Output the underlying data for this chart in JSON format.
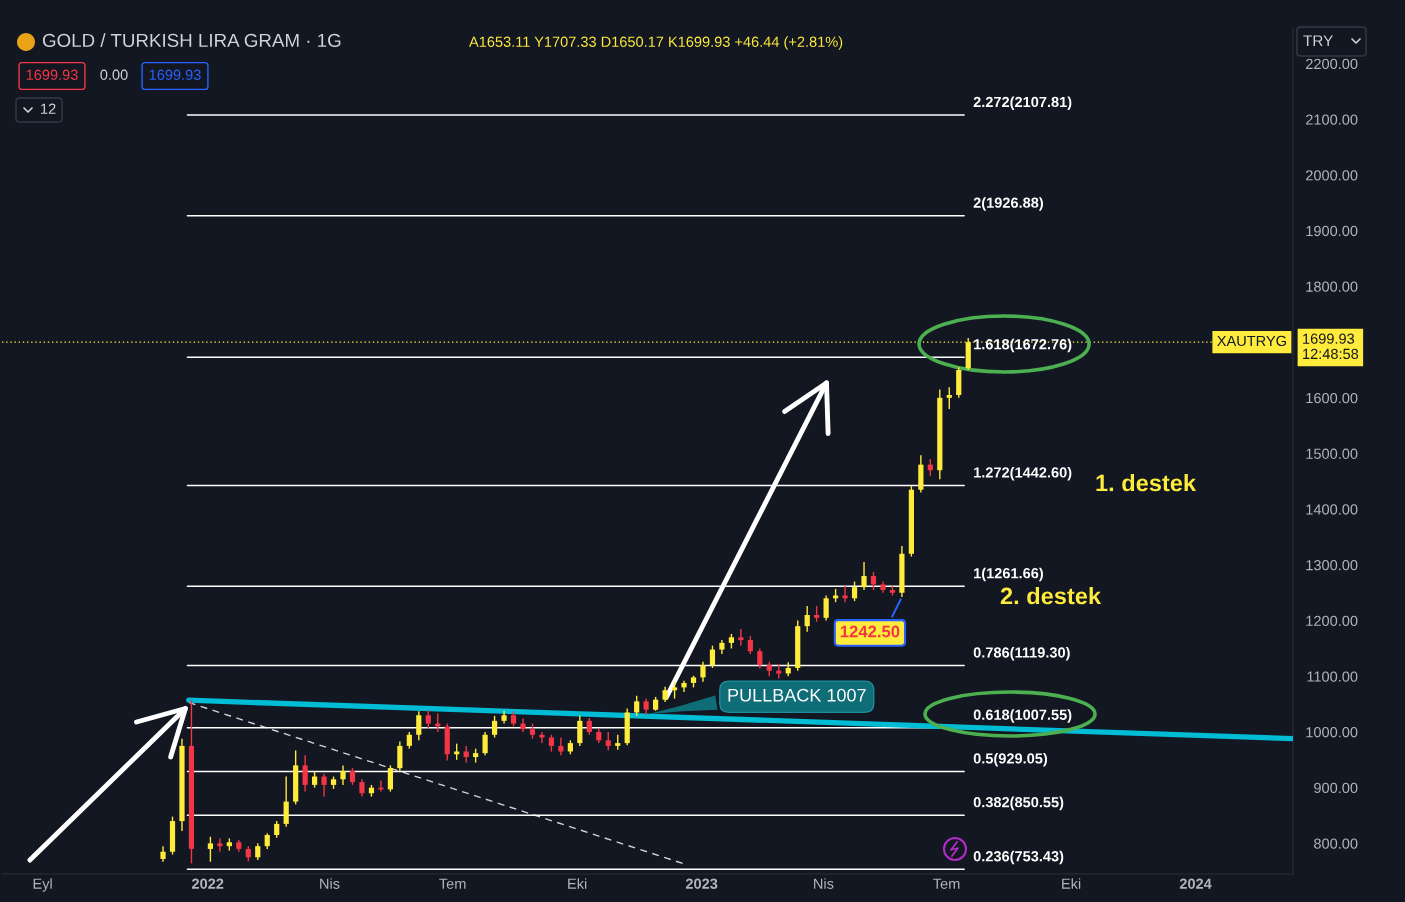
{
  "chart_data": {
    "type": "candlestick",
    "title": "GOLD / TURKISH LIRA GRAM · 1G",
    "subtitle": "A1653.11 Y1707.33 D1650.17 K1699.93 +46.44 (+2.81%)",
    "ylabel": "TRY",
    "xlim": [
      "2021-08-02",
      "2024-03-13"
    ],
    "ylim": [
      745,
      2264
    ],
    "xticks": [
      {
        "value": "2021-09-01",
        "label": "Eyl"
      },
      {
        "value": "2022-01-01",
        "label": "2022"
      },
      {
        "value": "2022-04-01",
        "label": "Nis"
      },
      {
        "value": "2022-07-01",
        "label": "Tem"
      },
      {
        "value": "2022-10-01",
        "label": "Eki"
      },
      {
        "value": "2023-01-01",
        "label": "2023"
      },
      {
        "value": "2023-04-01",
        "label": "Nis"
      },
      {
        "value": "2023-07-01",
        "label": "Tem"
      },
      {
        "value": "2023-10-01",
        "label": "Eki"
      },
      {
        "value": "2024-01-01",
        "label": "2024"
      }
    ],
    "yticks": [
      {
        "value": 800,
        "label": "800.00"
      },
      {
        "value": 900,
        "label": "900.00"
      },
      {
        "value": 1000,
        "label": "1000.00"
      },
      {
        "value": 1100,
        "label": "1100.00"
      },
      {
        "value": 1200,
        "label": "1200.00"
      },
      {
        "value": 1300,
        "label": "1300.00"
      },
      {
        "value": 1400,
        "label": "1400.00"
      },
      {
        "value": 1500,
        "label": "1500.00"
      },
      {
        "value": 1600,
        "label": "1600.00"
      },
      {
        "value": 1800,
        "label": "1800.00"
      },
      {
        "value": 1900,
        "label": "1900.00"
      },
      {
        "value": 2000,
        "label": "2000.00"
      },
      {
        "value": 2100,
        "label": "2100.00"
      },
      {
        "value": 2200,
        "label": "2200.00"
      }
    ],
    "series": [
      {
        "x": [
          "2021-11-29",
          "2021-12-06",
          "2021-12-13",
          "2021-12-20",
          "2022-01-03",
          "2022-01-10",
          "2022-01-17",
          "2022-01-24",
          "2022-01-31",
          "2022-02-07",
          "2022-02-14",
          "2022-02-21",
          "2022-02-28",
          "2022-03-07",
          "2022-03-14",
          "2022-03-21",
          "2022-03-28",
          "2022-04-04",
          "2022-04-11",
          "2022-04-18",
          "2022-04-25",
          "2022-05-02",
          "2022-05-09",
          "2022-05-16",
          "2022-05-23",
          "2022-05-30",
          "2022-06-06",
          "2022-06-13",
          "2022-06-20",
          "2022-06-27",
          "2022-07-04",
          "2022-07-11",
          "2022-07-18",
          "2022-07-25",
          "2022-08-01",
          "2022-08-08",
          "2022-08-15",
          "2022-08-22",
          "2022-08-29",
          "2022-09-05",
          "2022-09-12",
          "2022-09-19",
          "2022-09-26",
          "2022-10-03",
          "2022-10-10",
          "2022-10-17",
          "2022-10-24",
          "2022-10-31",
          "2022-11-07",
          "2022-11-14",
          "2022-11-21",
          "2022-11-28",
          "2022-12-05",
          "2022-12-12",
          "2022-12-19",
          "2022-12-26",
          "2023-01-02",
          "2023-01-09",
          "2023-01-16",
          "2023-01-23",
          "2023-01-30",
          "2023-02-06",
          "2023-02-13",
          "2023-02-20",
          "2023-02-27",
          "2023-03-06",
          "2023-03-13",
          "2023-03-20",
          "2023-03-27",
          "2023-04-03",
          "2023-04-10",
          "2023-04-17",
          "2023-04-24",
          "2023-05-01",
          "2023-05-08",
          "2023-05-15",
          "2023-05-22",
          "2023-05-29",
          "2023-06-05",
          "2023-06-12",
          "2023-06-19",
          "2023-06-26",
          "2023-07-03",
          "2023-07-10",
          "2023-07-17"
        ],
        "ohlc": [
          [
            772,
            795,
            767,
            785
          ],
          [
            785,
            848,
            780,
            840
          ],
          [
            840,
            988,
            822,
            975
          ],
          [
            975,
            1058,
            764,
            790
          ],
          [
            790,
            812,
            767,
            800
          ],
          [
            800,
            809,
            785,
            795
          ],
          [
            795,
            809,
            787,
            802
          ],
          [
            802,
            806,
            785,
            790
          ],
          [
            790,
            795,
            768,
            775
          ],
          [
            775,
            800,
            770,
            795
          ],
          [
            795,
            818,
            790,
            815
          ],
          [
            815,
            840,
            810,
            835
          ],
          [
            835,
            920,
            830,
            875
          ],
          [
            875,
            967,
            870,
            940
          ],
          [
            940,
            958,
            893,
            905
          ],
          [
            905,
            929,
            900,
            920
          ],
          [
            920,
            925,
            884,
            905
          ],
          [
            905,
            920,
            898,
            915
          ],
          [
            915,
            940,
            905,
            930
          ],
          [
            930,
            935,
            905,
            910
          ],
          [
            910,
            915,
            884,
            890
          ],
          [
            890,
            905,
            884,
            900
          ],
          [
            900,
            913,
            893,
            897
          ],
          [
            897,
            940,
            893,
            935
          ],
          [
            935,
            983,
            930,
            975
          ],
          [
            975,
            1000,
            970,
            995
          ],
          [
            995,
            1037,
            985,
            1030
          ],
          [
            1030,
            1040,
            1006,
            1015
          ],
          [
            1015,
            1033,
            1000,
            1010
          ],
          [
            1010,
            1015,
            949,
            960
          ],
          [
            960,
            979,
            950,
            965
          ],
          [
            965,
            975,
            945,
            955
          ],
          [
            955,
            970,
            945,
            962
          ],
          [
            962,
            1000,
            958,
            995
          ],
          [
            995,
            1029,
            990,
            1020
          ],
          [
            1020,
            1038,
            1015,
            1030
          ],
          [
            1030,
            1037,
            1010,
            1015
          ],
          [
            1015,
            1024,
            1000,
            1005
          ],
          [
            1005,
            1015,
            988,
            995
          ],
          [
            995,
            1000,
            980,
            990
          ],
          [
            990,
            995,
            965,
            975
          ],
          [
            975,
            990,
            958,
            965
          ],
          [
            965,
            985,
            960,
            980
          ],
          [
            980,
            1029,
            975,
            1020
          ],
          [
            1020,
            1025,
            995,
            1000
          ],
          [
            1000,
            1006,
            980,
            985
          ],
          [
            985,
            1000,
            967,
            975
          ],
          [
            975,
            995,
            968,
            980
          ],
          [
            980,
            1042,
            976,
            1035
          ],
          [
            1035,
            1065,
            1029,
            1055
          ],
          [
            1055,
            1060,
            1031,
            1040
          ],
          [
            1040,
            1063,
            1038,
            1058
          ],
          [
            1058,
            1081,
            1054,
            1075
          ],
          [
            1075,
            1090,
            1060,
            1080
          ],
          [
            1080,
            1092,
            1072,
            1088
          ],
          [
            1088,
            1101,
            1080,
            1098
          ],
          [
            1098,
            1126,
            1090,
            1120
          ],
          [
            1120,
            1155,
            1115,
            1148
          ],
          [
            1148,
            1165,
            1140,
            1160
          ],
          [
            1160,
            1176,
            1150,
            1170
          ],
          [
            1170,
            1185,
            1155,
            1165
          ],
          [
            1165,
            1172,
            1140,
            1145
          ],
          [
            1145,
            1150,
            1114,
            1120
          ],
          [
            1120,
            1126,
            1100,
            1110
          ],
          [
            1110,
            1122,
            1096,
            1105
          ],
          [
            1105,
            1125,
            1100,
            1115
          ],
          [
            1115,
            1200,
            1110,
            1190
          ],
          [
            1190,
            1226,
            1180,
            1210
          ],
          [
            1210,
            1226,
            1198,
            1205
          ],
          [
            1205,
            1245,
            1200,
            1240
          ],
          [
            1240,
            1257,
            1233,
            1245
          ],
          [
            1245,
            1262,
            1233,
            1240
          ],
          [
            1240,
            1270,
            1235,
            1260
          ],
          [
            1260,
            1305,
            1255,
            1280
          ],
          [
            1280,
            1287,
            1255,
            1265
          ],
          [
            1265,
            1270,
            1250,
            1255
          ],
          [
            1255,
            1262,
            1245,
            1250
          ],
          [
            1250,
            1334,
            1242.5,
            1320
          ],
          [
            1320,
            1442,
            1315,
            1435
          ],
          [
            1435,
            1497,
            1430,
            1480
          ],
          [
            1480,
            1490,
            1460,
            1470
          ],
          [
            1470,
            1615,
            1454,
            1600
          ],
          [
            1600,
            1619,
            1580,
            1605
          ],
          [
            1605,
            1655,
            1600,
            1650
          ],
          [
            1653.11,
            1707.33,
            1650.17,
            1699.93
          ]
        ],
        "colors": [
          "#ffeb3b",
          "#ffeb3b",
          "#ffeb3b",
          "#f23645",
          "#ffeb3b",
          "#f23645",
          "#ffeb3b",
          "#f23645",
          "#f23645",
          "#ffeb3b",
          "#ffeb3b",
          "#ffeb3b",
          "#ffeb3b",
          "#ffeb3b",
          "#f23645",
          "#ffeb3b",
          "#f23645",
          "#ffeb3b",
          "#ffeb3b",
          "#f23645",
          "#f23645",
          "#ffeb3b",
          "#f23645",
          "#ffeb3b",
          "#ffeb3b",
          "#ffeb3b",
          "#ffeb3b",
          "#f23645",
          "#f23645",
          "#f23645",
          "#ffeb3b",
          "#f23645",
          "#ffeb3b",
          "#ffeb3b",
          "#ffeb3b",
          "#ffeb3b",
          "#f23645",
          "#f23645",
          "#f23645",
          "#f23645",
          "#f23645",
          "#f23645",
          "#ffeb3b",
          "#ffeb3b",
          "#f23645",
          "#f23645",
          "#f23645",
          "#ffeb3b",
          "#ffeb3b",
          "#ffeb3b",
          "#f23645",
          "#ffeb3b",
          "#ffeb3b",
          "#ffeb3b",
          "#ffeb3b",
          "#ffeb3b",
          "#ffeb3b",
          "#ffeb3b",
          "#ffeb3b",
          "#ffeb3b",
          "#f23645",
          "#f23645",
          "#f23645",
          "#f23645",
          "#f23645",
          "#ffeb3b",
          "#ffeb3b",
          "#ffeb3b",
          "#f23645",
          "#ffeb3b",
          "#ffeb3b",
          "#f23645",
          "#ffeb3b",
          "#ffeb3b",
          "#f23645",
          "#f23645",
          "#f23645",
          "#ffeb3b",
          "#ffeb3b",
          "#ffeb3b",
          "#f23645",
          "#ffeb3b",
          "#ffeb3b",
          "#ffeb3b",
          "#ffeb3b"
        ]
      },
      {
        "type": "line",
        "color": "#00bcd4",
        "x": [
          "2021-12-18",
          "2024-03-13"
        ],
        "values": [
          1057,
          988
        ]
      },
      {
        "type": "line",
        "color": "#d1d4dc",
        "line_style": "dashed",
        "x": [
          "2021-12-18",
          "2022-12-18"
        ],
        "values": [
          1053,
          764
        ]
      },
      {
        "type": "line",
        "name": "2.272(2107.81)",
        "color": "#ffffff",
        "x": [
          "2021-12-17",
          "2023-07-14"
        ],
        "values": [
          2107.81,
          2107.81
        ]
      },
      {
        "type": "line",
        "name": "2(1926.88)",
        "color": "#ffffff",
        "x": [
          "2021-12-17",
          "2023-07-14"
        ],
        "values": [
          1926.88,
          1926.88
        ]
      },
      {
        "type": "line",
        "name": "1.618(1672.76)",
        "color": "#ffffff",
        "x": [
          "2021-12-17",
          "2023-07-14"
        ],
        "values": [
          1672.76,
          1672.76
        ]
      },
      {
        "type": "line",
        "name": "1.272(1442.60)",
        "color": "#ffffff",
        "x": [
          "2021-12-17",
          "2023-07-14"
        ],
        "values": [
          1442.6,
          1442.6
        ]
      },
      {
        "type": "line",
        "name": "1(1261.66)",
        "color": "#ffffff",
        "x": [
          "2021-12-17",
          "2023-07-14"
        ],
        "values": [
          1261.66,
          1261.66
        ]
      },
      {
        "type": "line",
        "name": "0.786(1119.30)",
        "color": "#ffffff",
        "x": [
          "2021-12-17",
          "2023-07-14"
        ],
        "values": [
          1119.3,
          1119.3
        ]
      },
      {
        "type": "line",
        "name": "0.618(1007.55)",
        "color": "#ffffff",
        "x": [
          "2021-12-17",
          "2023-07-14"
        ],
        "values": [
          1007.55,
          1007.55
        ]
      },
      {
        "type": "line",
        "name": "0.5(929.05)",
        "color": "#ffffff",
        "x": [
          "2021-12-17",
          "2023-07-14"
        ],
        "values": [
          929.05,
          929.05
        ]
      },
      {
        "type": "line",
        "name": "0.382(850.55)",
        "color": "#ffffff",
        "x": [
          "2021-12-17",
          "2023-07-14"
        ],
        "values": [
          850.55,
          850.55
        ]
      },
      {
        "type": "line",
        "name": "0.236(753.43)",
        "color": "#ffffff",
        "x": [
          "2021-12-17",
          "2023-07-14"
        ],
        "values": [
          753.43,
          753.43
        ]
      }
    ],
    "ref_lines": [
      {
        "axis": "y",
        "value": 1699.93,
        "label": "XAUTRYG",
        "color": "#ffeb3b",
        "line_style": "dotted"
      }
    ],
    "annotations": [
      "1699.93",
      "0.00",
      "1699.93",
      "12",
      "12:48:58",
      "1. destek",
      "2. destek",
      {
        "text": "PULLBACK 1007",
        "x": "2022-11-20",
        "y": 1031
      },
      {
        "text": "1242.50",
        "x": "2023-05-29",
        "y": 1242.5
      }
    ]
  }
}
